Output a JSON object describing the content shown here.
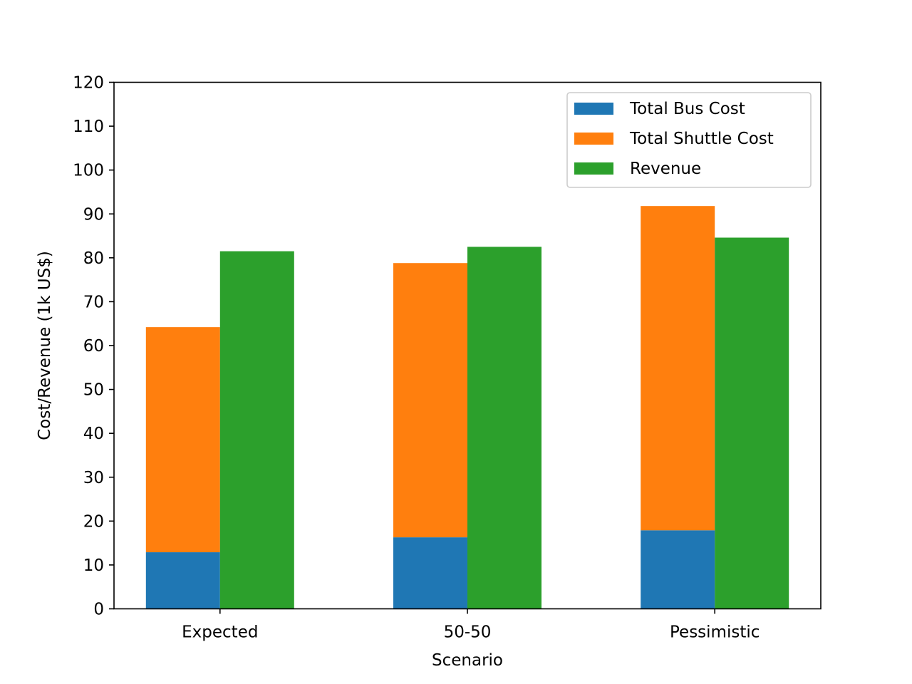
{
  "chart_data": {
    "type": "bar",
    "title": "",
    "xlabel": "Scenario",
    "ylabel": "Cost/Revenue (1k US$)",
    "ylim": [
      0,
      120
    ],
    "yticks": [
      0,
      10,
      20,
      30,
      40,
      50,
      60,
      70,
      80,
      90,
      100,
      110,
      120
    ],
    "categories": [
      "Expected",
      "50-50",
      "Pessimistic"
    ],
    "series": [
      {
        "name": "Total Bus Cost",
        "values": [
          12.9,
          16.3,
          17.9
        ],
        "color": "#1f77b4",
        "stack": "cost"
      },
      {
        "name": "Total Shuttle Cost",
        "values": [
          51.3,
          62.5,
          73.9
        ],
        "color": "#ff7f0e",
        "stack": "cost"
      },
      {
        "name": "Revenue",
        "values": [
          81.5,
          82.5,
          84.6
        ],
        "color": "#2ca02c",
        "stack": "revenue"
      }
    ],
    "legend_position": "top-right",
    "grid": false
  }
}
